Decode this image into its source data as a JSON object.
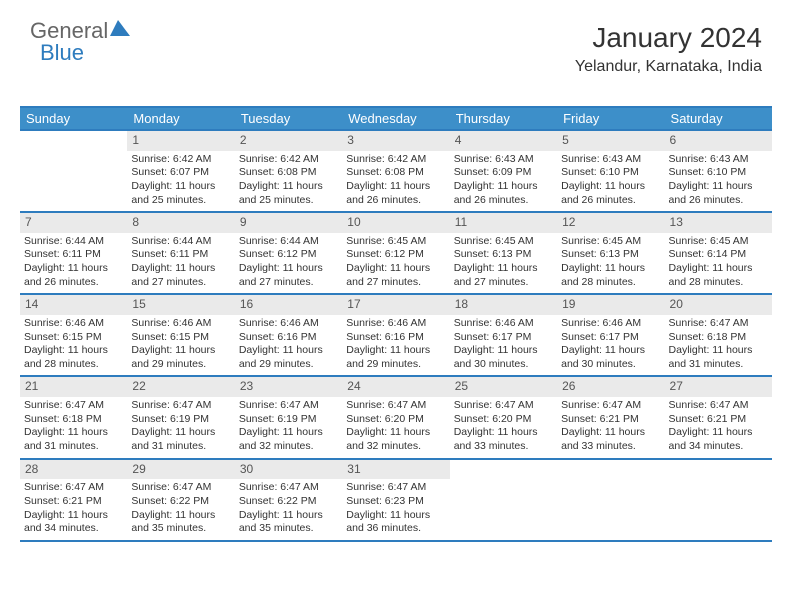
{
  "logo": {
    "text1": "General",
    "text2": "Blue",
    "triangle_color": "#2e7cbe"
  },
  "header": {
    "month_title": "January 2024",
    "location": "Yelandur, Karnataka, India"
  },
  "colors": {
    "header_bg": "#3d8fc9",
    "border": "#2e7cbe",
    "daynum_bg": "#eaeaea",
    "text": "#333333"
  },
  "day_names": [
    "Sunday",
    "Monday",
    "Tuesday",
    "Wednesday",
    "Thursday",
    "Friday",
    "Saturday"
  ],
  "weeks": [
    [
      {
        "n": "",
        "sr": "",
        "ss": "",
        "dl": ""
      },
      {
        "n": "1",
        "sr": "Sunrise: 6:42 AM",
        "ss": "Sunset: 6:07 PM",
        "dl": "Daylight: 11 hours and 25 minutes."
      },
      {
        "n": "2",
        "sr": "Sunrise: 6:42 AM",
        "ss": "Sunset: 6:08 PM",
        "dl": "Daylight: 11 hours and 25 minutes."
      },
      {
        "n": "3",
        "sr": "Sunrise: 6:42 AM",
        "ss": "Sunset: 6:08 PM",
        "dl": "Daylight: 11 hours and 26 minutes."
      },
      {
        "n": "4",
        "sr": "Sunrise: 6:43 AM",
        "ss": "Sunset: 6:09 PM",
        "dl": "Daylight: 11 hours and 26 minutes."
      },
      {
        "n": "5",
        "sr": "Sunrise: 6:43 AM",
        "ss": "Sunset: 6:10 PM",
        "dl": "Daylight: 11 hours and 26 minutes."
      },
      {
        "n": "6",
        "sr": "Sunrise: 6:43 AM",
        "ss": "Sunset: 6:10 PM",
        "dl": "Daylight: 11 hours and 26 minutes."
      }
    ],
    [
      {
        "n": "7",
        "sr": "Sunrise: 6:44 AM",
        "ss": "Sunset: 6:11 PM",
        "dl": "Daylight: 11 hours and 26 minutes."
      },
      {
        "n": "8",
        "sr": "Sunrise: 6:44 AM",
        "ss": "Sunset: 6:11 PM",
        "dl": "Daylight: 11 hours and 27 minutes."
      },
      {
        "n": "9",
        "sr": "Sunrise: 6:44 AM",
        "ss": "Sunset: 6:12 PM",
        "dl": "Daylight: 11 hours and 27 minutes."
      },
      {
        "n": "10",
        "sr": "Sunrise: 6:45 AM",
        "ss": "Sunset: 6:12 PM",
        "dl": "Daylight: 11 hours and 27 minutes."
      },
      {
        "n": "11",
        "sr": "Sunrise: 6:45 AM",
        "ss": "Sunset: 6:13 PM",
        "dl": "Daylight: 11 hours and 27 minutes."
      },
      {
        "n": "12",
        "sr": "Sunrise: 6:45 AM",
        "ss": "Sunset: 6:13 PM",
        "dl": "Daylight: 11 hours and 28 minutes."
      },
      {
        "n": "13",
        "sr": "Sunrise: 6:45 AM",
        "ss": "Sunset: 6:14 PM",
        "dl": "Daylight: 11 hours and 28 minutes."
      }
    ],
    [
      {
        "n": "14",
        "sr": "Sunrise: 6:46 AM",
        "ss": "Sunset: 6:15 PM",
        "dl": "Daylight: 11 hours and 28 minutes."
      },
      {
        "n": "15",
        "sr": "Sunrise: 6:46 AM",
        "ss": "Sunset: 6:15 PM",
        "dl": "Daylight: 11 hours and 29 minutes."
      },
      {
        "n": "16",
        "sr": "Sunrise: 6:46 AM",
        "ss": "Sunset: 6:16 PM",
        "dl": "Daylight: 11 hours and 29 minutes."
      },
      {
        "n": "17",
        "sr": "Sunrise: 6:46 AM",
        "ss": "Sunset: 6:16 PM",
        "dl": "Daylight: 11 hours and 29 minutes."
      },
      {
        "n": "18",
        "sr": "Sunrise: 6:46 AM",
        "ss": "Sunset: 6:17 PM",
        "dl": "Daylight: 11 hours and 30 minutes."
      },
      {
        "n": "19",
        "sr": "Sunrise: 6:46 AM",
        "ss": "Sunset: 6:17 PM",
        "dl": "Daylight: 11 hours and 30 minutes."
      },
      {
        "n": "20",
        "sr": "Sunrise: 6:47 AM",
        "ss": "Sunset: 6:18 PM",
        "dl": "Daylight: 11 hours and 31 minutes."
      }
    ],
    [
      {
        "n": "21",
        "sr": "Sunrise: 6:47 AM",
        "ss": "Sunset: 6:18 PM",
        "dl": "Daylight: 11 hours and 31 minutes."
      },
      {
        "n": "22",
        "sr": "Sunrise: 6:47 AM",
        "ss": "Sunset: 6:19 PM",
        "dl": "Daylight: 11 hours and 31 minutes."
      },
      {
        "n": "23",
        "sr": "Sunrise: 6:47 AM",
        "ss": "Sunset: 6:19 PM",
        "dl": "Daylight: 11 hours and 32 minutes."
      },
      {
        "n": "24",
        "sr": "Sunrise: 6:47 AM",
        "ss": "Sunset: 6:20 PM",
        "dl": "Daylight: 11 hours and 32 minutes."
      },
      {
        "n": "25",
        "sr": "Sunrise: 6:47 AM",
        "ss": "Sunset: 6:20 PM",
        "dl": "Daylight: 11 hours and 33 minutes."
      },
      {
        "n": "26",
        "sr": "Sunrise: 6:47 AM",
        "ss": "Sunset: 6:21 PM",
        "dl": "Daylight: 11 hours and 33 minutes."
      },
      {
        "n": "27",
        "sr": "Sunrise: 6:47 AM",
        "ss": "Sunset: 6:21 PM",
        "dl": "Daylight: 11 hours and 34 minutes."
      }
    ],
    [
      {
        "n": "28",
        "sr": "Sunrise: 6:47 AM",
        "ss": "Sunset: 6:21 PM",
        "dl": "Daylight: 11 hours and 34 minutes."
      },
      {
        "n": "29",
        "sr": "Sunrise: 6:47 AM",
        "ss": "Sunset: 6:22 PM",
        "dl": "Daylight: 11 hours and 35 minutes."
      },
      {
        "n": "30",
        "sr": "Sunrise: 6:47 AM",
        "ss": "Sunset: 6:22 PM",
        "dl": "Daylight: 11 hours and 35 minutes."
      },
      {
        "n": "31",
        "sr": "Sunrise: 6:47 AM",
        "ss": "Sunset: 6:23 PM",
        "dl": "Daylight: 11 hours and 36 minutes."
      },
      {
        "n": "",
        "sr": "",
        "ss": "",
        "dl": ""
      },
      {
        "n": "",
        "sr": "",
        "ss": "",
        "dl": ""
      },
      {
        "n": "",
        "sr": "",
        "ss": "",
        "dl": ""
      }
    ]
  ]
}
